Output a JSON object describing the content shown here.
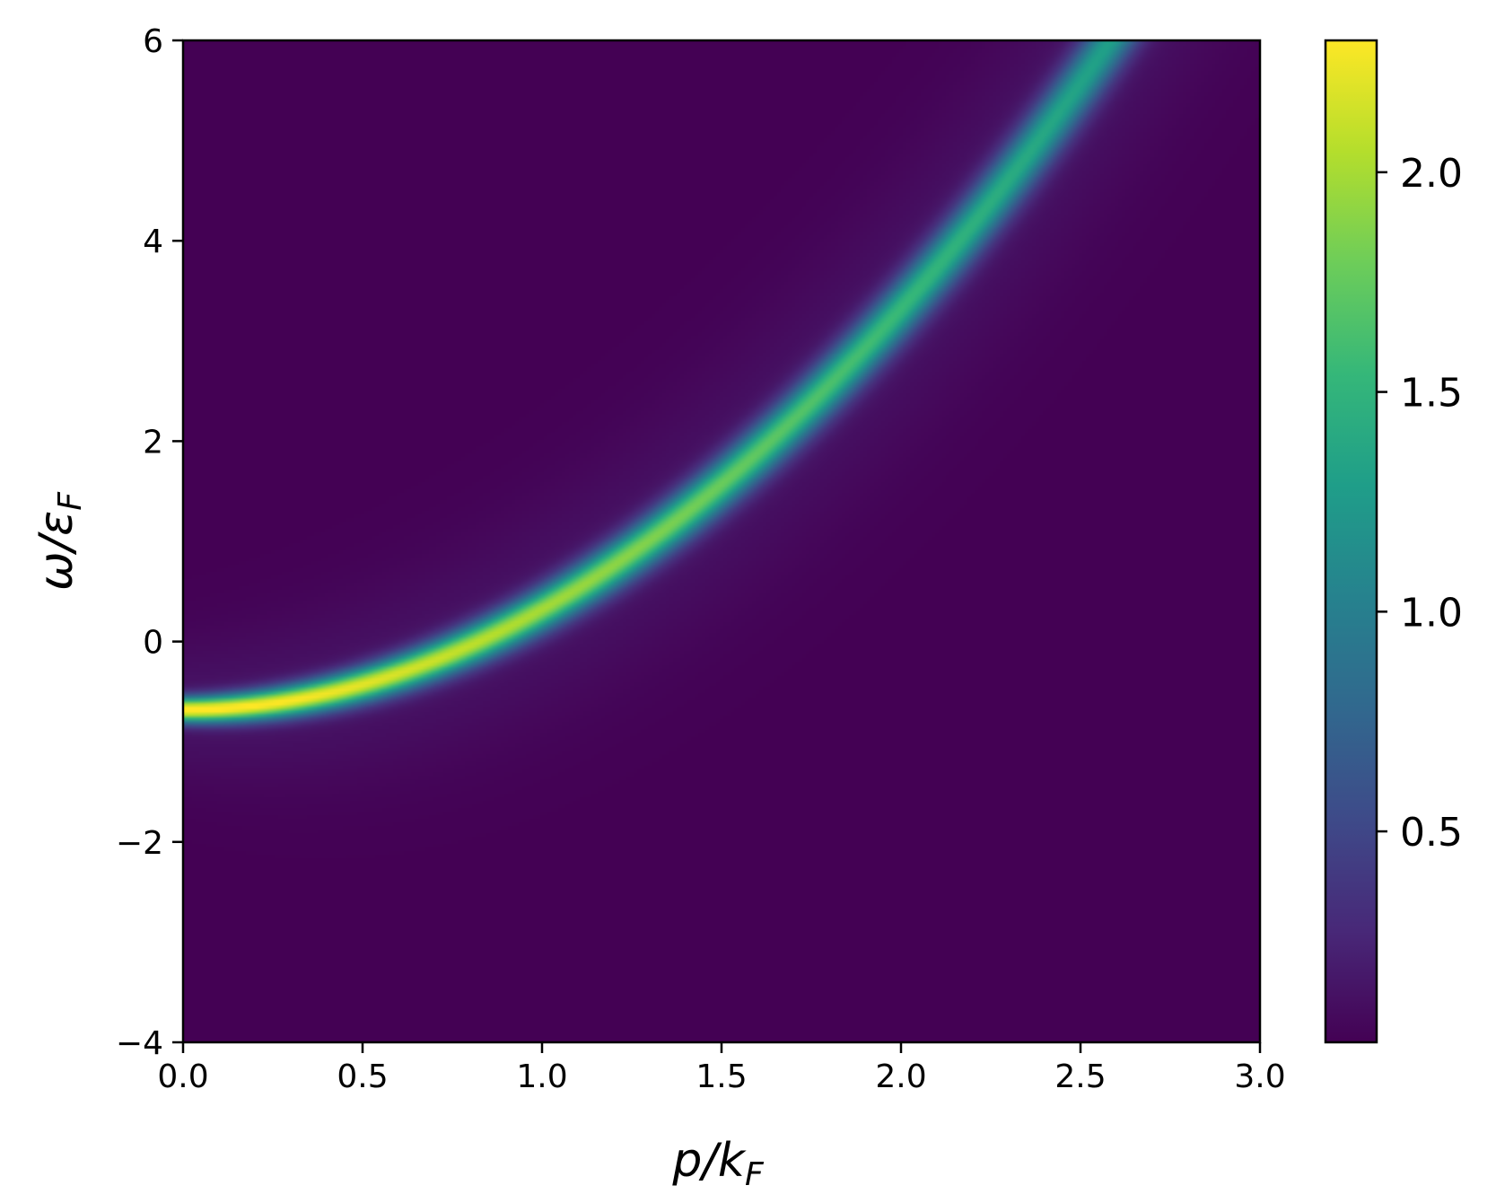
{
  "chart_data": {
    "type": "heatmap",
    "title": "",
    "xlabel": {
      "base": "p/k",
      "sub": "F"
    },
    "ylabel": {
      "base": "ω/ε",
      "sub": "F"
    },
    "xlim": [
      0.0,
      3.0
    ],
    "ylim": [
      -4,
      6
    ],
    "x_ticks": [
      0.0,
      0.5,
      1.0,
      1.5,
      2.0,
      2.5,
      3.0
    ],
    "x_tick_labels": [
      "0.0",
      "0.5",
      "1.0",
      "1.5",
      "2.0",
      "2.5",
      "3.0"
    ],
    "y_ticks": [
      -4,
      -2,
      0,
      2,
      4,
      6
    ],
    "y_tick_labels": [
      "−4",
      "−2",
      "0",
      "2",
      "4",
      "6"
    ],
    "colormap": "viridis",
    "colorbar": {
      "range": [
        0.02,
        2.3
      ],
      "ticks": [
        0.5,
        1.0,
        1.5,
        2.0
      ],
      "tick_labels": [
        "0.5",
        "1.0",
        "1.5",
        "2.0"
      ]
    },
    "spectral_peak": {
      "description_values": "peak ridge follows omega = p^2 + omega0",
      "omega0": -0.68,
      "points": [
        {
          "p": 0.0,
          "omega": -0.68
        },
        {
          "p": 0.5,
          "omega": -0.43
        },
        {
          "p": 1.0,
          "omega": 0.32
        },
        {
          "p": 1.5,
          "omega": 1.57
        },
        {
          "p": 2.0,
          "omega": 3.32
        },
        {
          "p": 2.5,
          "omega": 5.57
        },
        {
          "p": 2.55,
          "omega": 5.82
        }
      ],
      "peak_intensity_at_p0": 2.3,
      "peak_intensity_at_p2_5": 1.2
    },
    "grid": false,
    "legend": "none"
  }
}
